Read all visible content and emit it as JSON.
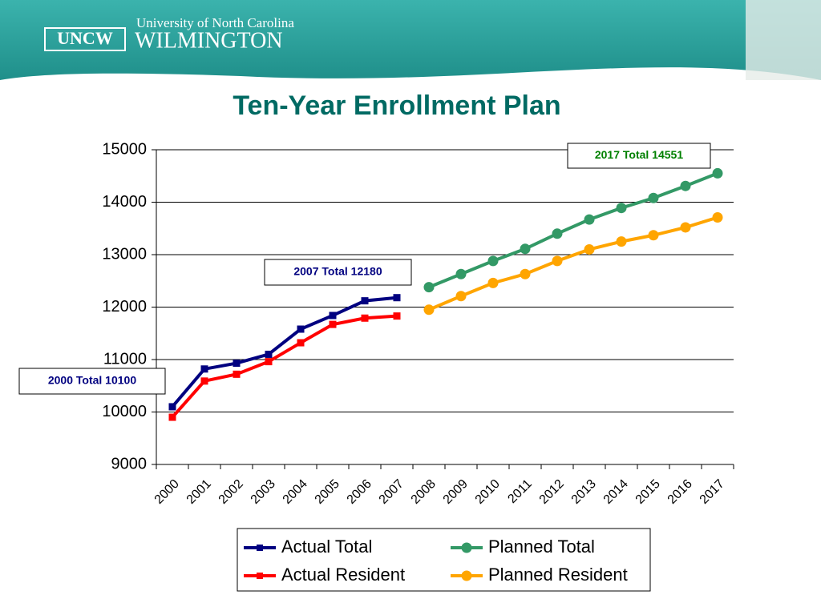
{
  "header": {
    "logo": "UNCW",
    "university": "University of North Carolina",
    "campus": "WILMINGTON"
  },
  "chart_data": {
    "type": "line",
    "title": "Ten-Year Enrollment Plan",
    "categories": [
      "2000",
      "2001",
      "2002",
      "2003",
      "2004",
      "2005",
      "2006",
      "2007",
      "2008",
      "2009",
      "2010",
      "2011",
      "2012",
      "2013",
      "2014",
      "2015",
      "2016",
      "2017"
    ],
    "series": [
      {
        "name": "Actual Total",
        "color": "#000080",
        "marker": "square",
        "values": [
          10100,
          10820,
          10930,
          11100,
          11580,
          11840,
          12120,
          12180,
          null,
          null,
          null,
          null,
          null,
          null,
          null,
          null,
          null,
          null
        ]
      },
      {
        "name": "Actual Resident",
        "color": "#ff0000",
        "marker": "square",
        "values": [
          9900,
          10590,
          10720,
          10960,
          11320,
          11670,
          11790,
          11830,
          null,
          null,
          null,
          null,
          null,
          null,
          null,
          null,
          null,
          null
        ]
      },
      {
        "name": "Planned Total",
        "color": "#339966",
        "marker": "circle",
        "values": [
          null,
          null,
          null,
          null,
          null,
          null,
          null,
          null,
          12380,
          12630,
          12880,
          13110,
          13400,
          13670,
          13890,
          14080,
          14310,
          14551
        ]
      },
      {
        "name": "Planned Resident",
        "color": "#ffa500",
        "marker": "circle",
        "values": [
          null,
          null,
          null,
          null,
          null,
          null,
          null,
          null,
          11950,
          12210,
          12460,
          12630,
          12880,
          13100,
          13250,
          13370,
          13520,
          13710
        ]
      }
    ],
    "ylim": [
      9000,
      15000
    ],
    "yticks": [
      9000,
      10000,
      11000,
      12000,
      13000,
      14000,
      15000
    ],
    "grid": true,
    "annotations": [
      {
        "text": "2000 Total 10100",
        "color": "#000080"
      },
      {
        "text": "2007 Total 12180",
        "color": "#000080"
      },
      {
        "text": "2017 Total 14551",
        "color": "#008000"
      }
    ]
  }
}
